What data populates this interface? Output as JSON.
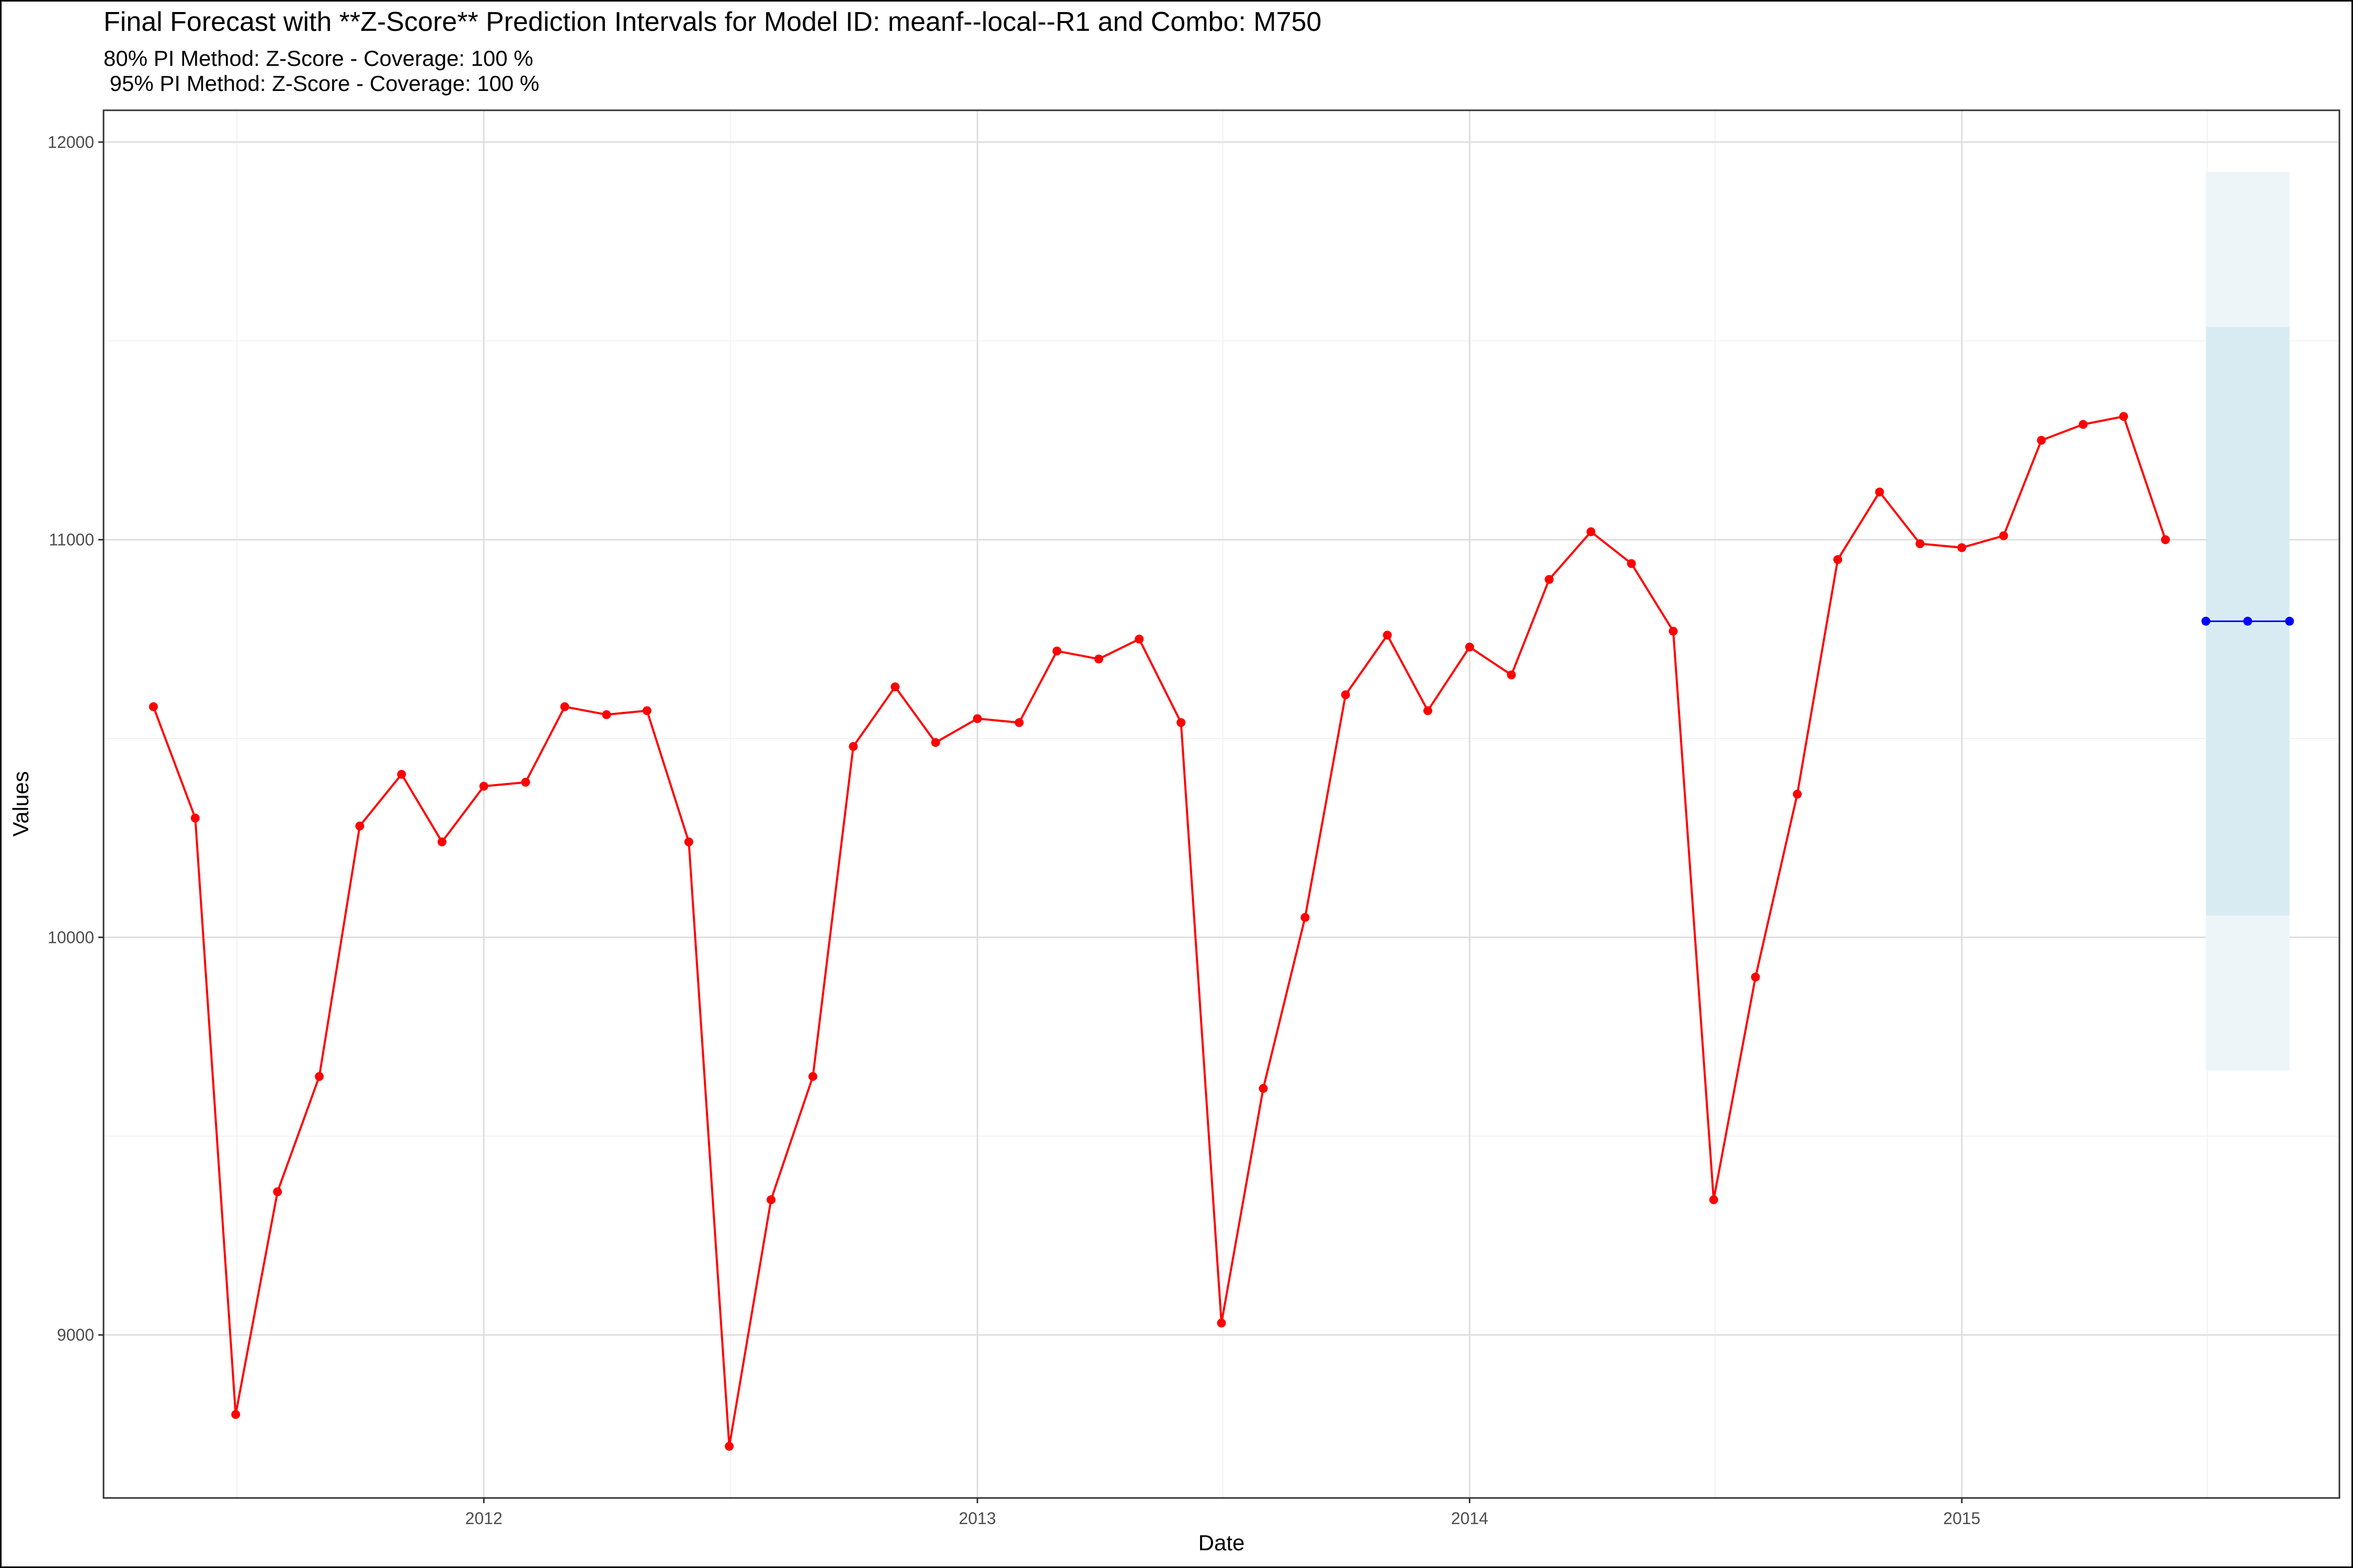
{
  "title": "Final Forecast with **Z-Score** Prediction Intervals for Model ID: meanf--local--R1 and Combo: M750",
  "subtitle_lines": [
    "80% PI Method: Z-Score - Coverage: 100 %",
    " 95% PI Method: Z-Score - Coverage: 100 %"
  ],
  "chart_data": {
    "type": "line",
    "xlabel": "Date",
    "ylabel": "Values",
    "x_tick_labels": [
      "2012",
      "2013",
      "2014",
      "2015"
    ],
    "y_tick_labels": [
      "9000",
      "10000",
      "11000",
      "12000"
    ],
    "xlim": [
      "2011-03-25",
      "2015-10-08"
    ],
    "ylim": [
      8590,
      12080
    ],
    "grid": true,
    "legend": "none",
    "series": [
      {
        "kind": "actual",
        "color": "#ff0000",
        "points": [
          [
            "2011-05-01",
            10580
          ],
          [
            "2011-06-01",
            10300
          ],
          [
            "2011-07-01",
            8800
          ],
          [
            "2011-08-01",
            9360
          ],
          [
            "2011-09-01",
            9650
          ],
          [
            "2011-10-01",
            10280
          ],
          [
            "2011-11-01",
            10410
          ],
          [
            "2011-12-01",
            10240
          ],
          [
            "2012-01-01",
            10380
          ],
          [
            "2012-02-01",
            10390
          ],
          [
            "2012-03-01",
            10580
          ],
          [
            "2012-04-01",
            10560
          ],
          [
            "2012-05-01",
            10570
          ],
          [
            "2012-06-01",
            10240
          ],
          [
            "2012-07-01",
            8720
          ],
          [
            "2012-08-01",
            9340
          ],
          [
            "2012-09-01",
            9650
          ],
          [
            "2012-10-01",
            10480
          ],
          [
            "2012-11-01",
            10630
          ],
          [
            "2012-12-01",
            10490
          ],
          [
            "2013-01-01",
            10550
          ],
          [
            "2013-02-01",
            10540
          ],
          [
            "2013-03-01",
            10720
          ],
          [
            "2013-04-01",
            10700
          ],
          [
            "2013-05-01",
            10750
          ],
          [
            "2013-06-01",
            10540
          ],
          [
            "2013-07-01",
            9030
          ],
          [
            "2013-08-01",
            9620
          ],
          [
            "2013-09-01",
            10050
          ],
          [
            "2013-10-01",
            10610
          ],
          [
            "2013-11-01",
            10760
          ],
          [
            "2013-12-01",
            10570
          ],
          [
            "2014-01-01",
            10730
          ],
          [
            "2014-02-01",
            10660
          ],
          [
            "2014-03-01",
            10900
          ],
          [
            "2014-04-01",
            11020
          ],
          [
            "2014-05-01",
            10940
          ],
          [
            "2014-06-01",
            10770
          ],
          [
            "2014-07-01",
            9340
          ],
          [
            "2014-08-01",
            9900
          ],
          [
            "2014-09-01",
            10360
          ],
          [
            "2014-10-01",
            10950
          ],
          [
            "2014-11-01",
            11120
          ],
          [
            "2014-12-01",
            10990
          ],
          [
            "2015-01-01",
            10980
          ],
          [
            "2015-02-01",
            11010
          ],
          [
            "2015-03-01",
            11250
          ],
          [
            "2015-04-01",
            11290
          ],
          [
            "2015-05-01",
            11310
          ],
          [
            "2015-06-01",
            11000
          ]
        ]
      },
      {
        "kind": "forecast",
        "color": "#0000ff",
        "points": [
          [
            "2015-07-01",
            10795
          ],
          [
            "2015-08-01",
            10795
          ],
          [
            "2015-09-01",
            10795
          ]
        ]
      }
    ],
    "intervals": [
      {
        "level": "95%",
        "color": "#edf5f9",
        "x_range": [
          "2015-07-01",
          "2015-09-01"
        ],
        "lower": 9665,
        "upper": 11925
      },
      {
        "level": "80%",
        "color": "#d9ebf2",
        "x_range": [
          "2015-07-01",
          "2015-09-01"
        ],
        "lower": 10055,
        "upper": 11535
      }
    ]
  }
}
